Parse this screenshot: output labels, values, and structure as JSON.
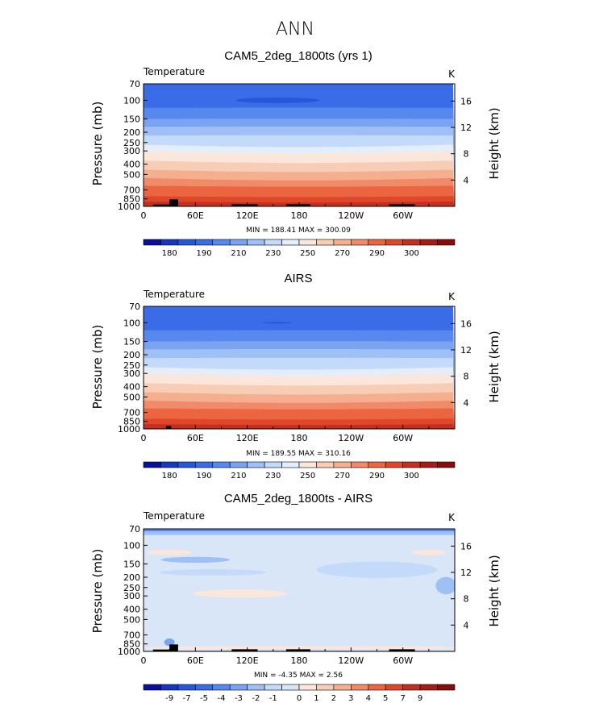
{
  "figure": {
    "title": "ANN"
  },
  "colors": {
    "abs_scale": [
      "#0a0f9c",
      "#1638c0",
      "#2557da",
      "#3a6ce8",
      "#5688ee",
      "#7aa4f2",
      "#9fc0f6",
      "#c4dafa",
      "#e4edfb",
      "#fbe6dc",
      "#f8cdb6",
      "#f4af8f",
      "#f08a68",
      "#ea6540",
      "#e0472a",
      "#c43020",
      "#a61c16",
      "#870c0c"
    ],
    "diff_scale": [
      "#0a0f9c",
      "#1638c0",
      "#2557da",
      "#3a6ce8",
      "#5688ee",
      "#7aa4f2",
      "#9fc0f6",
      "#c4dafa",
      "#d8e6f8",
      "#fbe6dc",
      "#f8cdb6",
      "#f4af8f",
      "#f08a68",
      "#ea6540",
      "#e0472a",
      "#c43020",
      "#a61c16",
      "#870c0c"
    ],
    "terrain": "#000000"
  },
  "chart_data": [
    {
      "type": "heatmap",
      "title": "CAM5_2deg_1800ts (yrs 1)",
      "variable": "Temperature",
      "units": "K",
      "ylabel": "Pressure (mb)",
      "ylabel_right": "Height (km)",
      "x_ticks": [
        "0",
        "60E",
        "120E",
        "180",
        "120W",
        "60W"
      ],
      "x_tick_lon": [
        0,
        60,
        120,
        180,
        240,
        300
      ],
      "xlim": [
        0,
        360
      ],
      "y_ticks": [
        "70",
        "100",
        "150",
        "200",
        "250",
        "300",
        "400",
        "500",
        "700",
        "850",
        "1000"
      ],
      "y_tick_p": [
        70,
        100,
        150,
        200,
        250,
        300,
        400,
        500,
        700,
        850,
        1000
      ],
      "ylim": [
        70,
        1000
      ],
      "y_scale": "log",
      "height_ticks": [
        "4",
        "8",
        "12",
        "16"
      ],
      "height_km": [
        4,
        8,
        12,
        16
      ],
      "min": "188.41",
      "max": "300.09",
      "minmax_label": "MIN = 188.41   MAX = 300.09",
      "levels": [
        "180",
        "190",
        "210",
        "230",
        "250",
        "270",
        "290",
        "300"
      ]
    },
    {
      "type": "heatmap",
      "title": "AIRS",
      "variable": "Temperature",
      "units": "K",
      "ylabel": "Pressure (mb)",
      "ylabel_right": "Height (km)",
      "x_ticks": [
        "0",
        "60E",
        "120E",
        "180",
        "120W",
        "60W"
      ],
      "x_tick_lon": [
        0,
        60,
        120,
        180,
        240,
        300
      ],
      "xlim": [
        0,
        360
      ],
      "y_ticks": [
        "70",
        "100",
        "150",
        "200",
        "250",
        "300",
        "400",
        "500",
        "700",
        "850",
        "1000"
      ],
      "y_tick_p": [
        70,
        100,
        150,
        200,
        250,
        300,
        400,
        500,
        700,
        850,
        1000
      ],
      "ylim": [
        70,
        1000
      ],
      "y_scale": "log",
      "height_ticks": [
        "4",
        "8",
        "12",
        "16"
      ],
      "height_km": [
        4,
        8,
        12,
        16
      ],
      "min": "189.55",
      "max": "310.16",
      "minmax_label": "MIN = 189.55   MAX = 310.16",
      "levels": [
        "180",
        "190",
        "210",
        "230",
        "250",
        "270",
        "290",
        "300"
      ]
    },
    {
      "type": "heatmap",
      "title": "CAM5_2deg_1800ts - AIRS",
      "variable": "Temperature",
      "units": "K",
      "ylabel": "Pressure (mb)",
      "ylabel_right": "Height (km)",
      "x_ticks": [
        "0",
        "60E",
        "120E",
        "180",
        "120W",
        "60W"
      ],
      "x_tick_lon": [
        0,
        60,
        120,
        180,
        240,
        300
      ],
      "xlim": [
        0,
        360
      ],
      "y_ticks": [
        "70",
        "100",
        "150",
        "200",
        "250",
        "300",
        "400",
        "500",
        "700",
        "850",
        "1000"
      ],
      "y_tick_p": [
        70,
        100,
        150,
        200,
        250,
        300,
        400,
        500,
        700,
        850,
        1000
      ],
      "ylim": [
        70,
        1000
      ],
      "y_scale": "log",
      "height_ticks": [
        "4",
        "8",
        "12",
        "16"
      ],
      "height_km": [
        4,
        8,
        12,
        16
      ],
      "min": "-4.35",
      "max": "2.56",
      "minmax_label": "MIN =   -4.35   MAX =    2.56",
      "levels": [
        "-9",
        "-7",
        "-5",
        "-4",
        "-3",
        "-2",
        "-1",
        "0",
        "1",
        "2",
        "3",
        "4",
        "5",
        "7",
        "9"
      ]
    }
  ]
}
